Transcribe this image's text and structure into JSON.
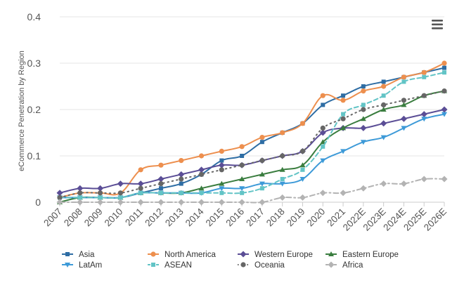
{
  "chart_data": {
    "type": "line",
    "ylabel": "eCommerce Penetration by Region",
    "xlabel": "",
    "title": "",
    "ylim": [
      0,
      0.4
    ],
    "yticks": [
      0,
      0.1,
      0.2,
      0.3,
      0.4
    ],
    "ytick_labels": [
      "0",
      "0.1",
      "0.2",
      "0.3",
      "0.4"
    ],
    "grid": true,
    "legend_position": "bottom",
    "categories": [
      "2007",
      "2008",
      "2009",
      "2010",
      "2011",
      "2012",
      "2013",
      "2014",
      "2015",
      "2016",
      "2017",
      "2018",
      "2019",
      "2020",
      "2021",
      "2022E",
      "2023E",
      "2024E",
      "2025E",
      "2026E"
    ],
    "series": [
      {
        "name": "Asia",
        "color": "#2e6da4",
        "marker": "square",
        "dash": "solid",
        "values": [
          0.01,
          0.01,
          0.01,
          0.01,
          0.02,
          0.03,
          0.04,
          0.06,
          0.09,
          0.1,
          0.13,
          0.15,
          0.17,
          0.21,
          0.23,
          0.25,
          0.26,
          0.27,
          0.28,
          0.29
        ]
      },
      {
        "name": "North America",
        "color": "#ed8f4e",
        "marker": "circle",
        "dash": "solid",
        "values": [
          0.01,
          0.02,
          0.02,
          0.02,
          0.07,
          0.08,
          0.09,
          0.1,
          0.11,
          0.12,
          0.14,
          0.15,
          0.17,
          0.23,
          0.22,
          0.24,
          0.25,
          0.27,
          0.28,
          0.3
        ]
      },
      {
        "name": "Western Europe",
        "color": "#5b4e96",
        "marker": "diamond",
        "dash": "solid",
        "values": [
          0.02,
          0.03,
          0.03,
          0.04,
          0.04,
          0.05,
          0.06,
          0.07,
          0.08,
          0.08,
          0.09,
          0.1,
          0.11,
          0.15,
          0.16,
          0.16,
          0.17,
          0.18,
          0.19,
          0.2
        ]
      },
      {
        "name": "Eastern Europe",
        "color": "#3a7d3f",
        "marker": "triangle",
        "dash": "solid",
        "values": [
          0.0,
          0.01,
          0.01,
          0.01,
          0.02,
          0.02,
          0.02,
          0.03,
          0.04,
          0.05,
          0.06,
          0.07,
          0.08,
          0.13,
          0.16,
          0.18,
          0.2,
          0.21,
          0.23,
          0.24
        ]
      },
      {
        "name": "LatAm",
        "color": "#3d9ad8",
        "marker": "triangle-down",
        "dash": "solid",
        "values": [
          0.01,
          0.01,
          0.01,
          0.01,
          0.02,
          0.02,
          0.02,
          0.02,
          0.03,
          0.03,
          0.04,
          0.04,
          0.05,
          0.09,
          0.11,
          0.13,
          0.14,
          0.16,
          0.18,
          0.19
        ]
      },
      {
        "name": "ASEAN",
        "color": "#62c4c6",
        "marker": "square",
        "dash": "dash",
        "values": [
          0.01,
          0.01,
          0.01,
          0.01,
          0.02,
          0.02,
          0.02,
          0.02,
          0.02,
          0.02,
          0.03,
          0.05,
          0.07,
          0.12,
          0.19,
          0.21,
          0.23,
          0.26,
          0.27,
          0.28
        ]
      },
      {
        "name": "Oceania",
        "color": "#666666",
        "marker": "circle",
        "dash": "dot",
        "values": [
          0.01,
          0.02,
          0.02,
          0.02,
          0.03,
          0.04,
          0.05,
          0.06,
          0.07,
          0.08,
          0.09,
          0.1,
          0.11,
          0.16,
          0.18,
          0.2,
          0.21,
          0.22,
          0.23,
          0.24
        ]
      },
      {
        "name": "Africa",
        "color": "#b3b3b3",
        "marker": "diamond",
        "dash": "dashdot",
        "values": [
          0.0,
          0.0,
          0.0,
          0.0,
          0.0,
          0.0,
          0.0,
          0.0,
          0.0,
          0.0,
          0.0,
          0.01,
          0.01,
          0.02,
          0.02,
          0.03,
          0.04,
          0.04,
          0.05,
          0.05
        ]
      }
    ]
  },
  "menu": {
    "icon": "hamburger-menu-icon"
  }
}
